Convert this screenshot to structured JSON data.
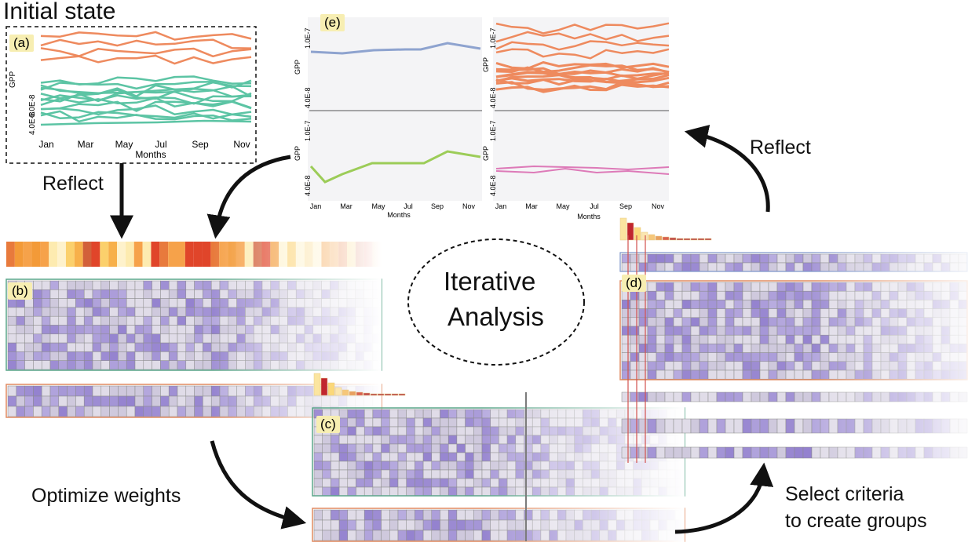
{
  "title": "Initial state",
  "labels": {
    "reflect_left": "Reflect",
    "reflect_right": "Reflect",
    "optimize": "Optimize weights",
    "select_line1": "Select criteria",
    "select_line2": "to create groups",
    "iterative_line1": "Iterative",
    "iterative_line2": "Analysis"
  },
  "panels": {
    "a": "(a)",
    "b": "(b)",
    "c": "(c)",
    "d": "(d)",
    "e": "(e)"
  },
  "axes": {
    "ylabel": "GPP",
    "xlabel": "Months",
    "months": [
      "Jan",
      "Mar",
      "May",
      "Jul",
      "Sep",
      "Nov"
    ],
    "a_yticks": [
      "6.0E-8",
      "4.0E-8"
    ],
    "e_yticks": [
      "1.0E-7",
      "4.0E-8"
    ]
  },
  "colors": {
    "orange": "#ee8a5e",
    "teal": "#5cc4a4",
    "blue": "#8ea3cf",
    "green": "#9ccc58",
    "pink": "#dd7ab8",
    "purple_dark": "#7c66c4",
    "purple_light": "#d9d2ee"
  }
}
